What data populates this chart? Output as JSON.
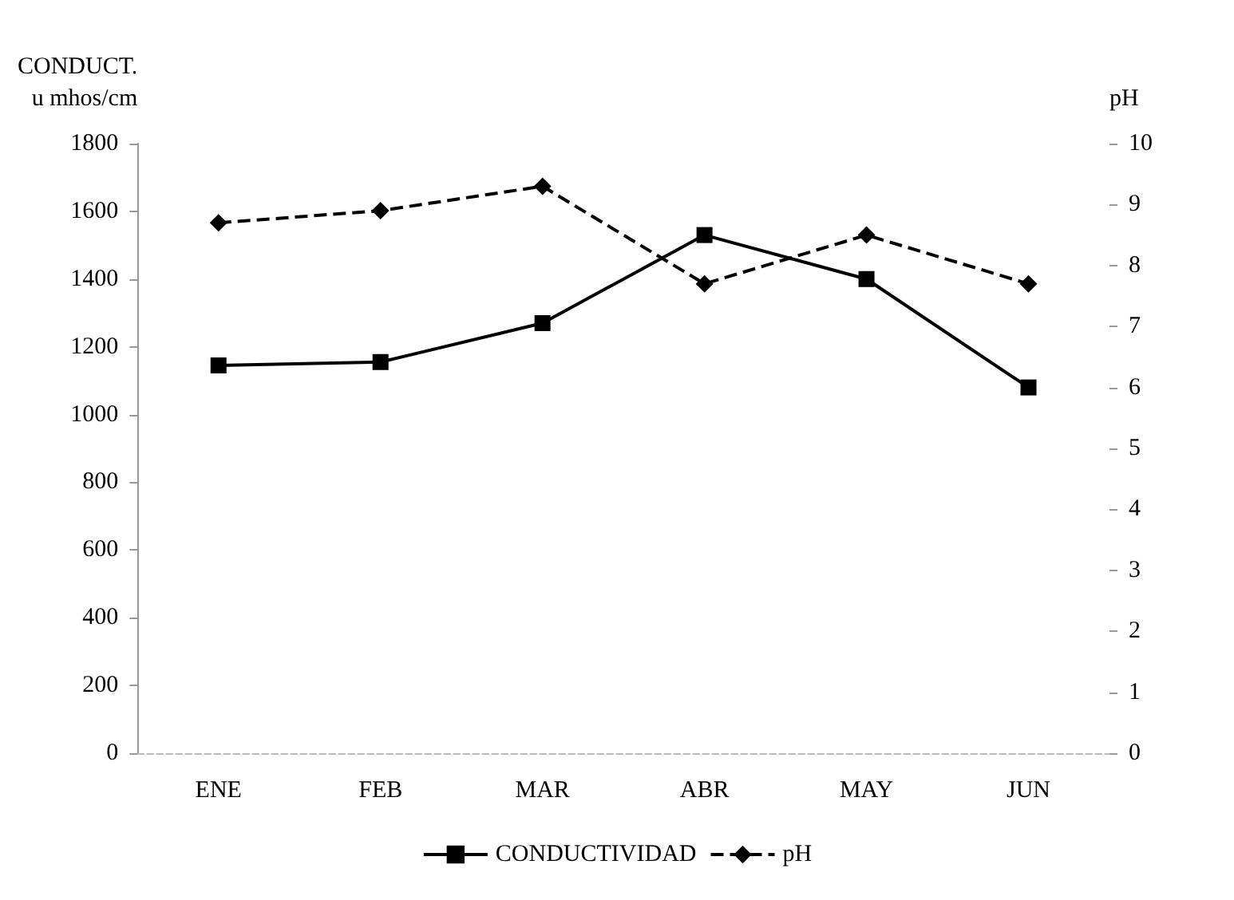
{
  "chart_data": {
    "type": "line",
    "ylabel": "CONDUCT.\nu mhos/cm",
    "y2label": "pH",
    "categories": [
      "ENE",
      "FEB",
      "MAR",
      "ABR",
      "MAY",
      "JUN"
    ],
    "series": [
      {
        "name": "CONDUCTIVIDAD",
        "color": "#000000",
        "values": [
          1145,
          1155,
          1270,
          1530,
          1400,
          1080
        ],
        "marker": "square",
        "line_style": "solid"
      },
      {
        "name": "pH",
        "color": "#000000",
        "values": [
          8.7,
          8.9,
          9.3,
          7.7,
          8.5,
          7.7
        ],
        "marker": "diamond",
        "line_style": "dashed",
        "axis": "y2"
      }
    ],
    "ylim": [
      0,
      1800
    ],
    "yticks": [
      0,
      200,
      400,
      600,
      800,
      1000,
      1200,
      1400,
      1600,
      1800
    ],
    "y2lim": [
      0,
      10
    ],
    "y2ticks": [
      0,
      1,
      2,
      3,
      4,
      5,
      6,
      7,
      8,
      9,
      10
    ],
    "grid": false,
    "legend": "bottom"
  }
}
